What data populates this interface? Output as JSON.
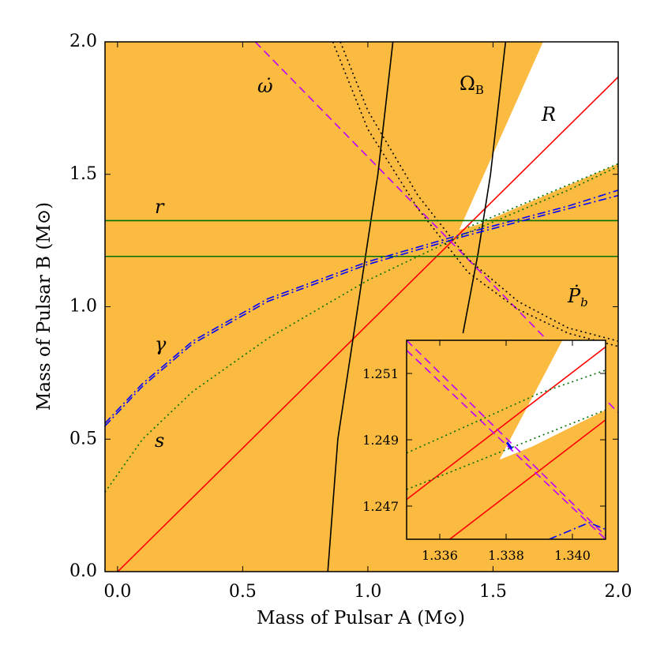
{
  "chart_data": [
    {
      "type": "line",
      "xlabel": "Mass of Pulsar A (M⊙)",
      "ylabel": "Mass of Pulsar B (M⊙)",
      "xlim": [
        -0.05,
        2.0
      ],
      "ylim": [
        0.0,
        2.0
      ],
      "xticks": [
        "0.0",
        "0.5",
        "1.0",
        "1.5",
        "2.0"
      ],
      "yticks": [
        "0.0",
        "0.5",
        "1.0",
        "1.5",
        "2.0"
      ],
      "grid": false,
      "excluded_region_color": "#FBBA40",
      "allowed_region": [
        [
          1.365,
          1.29
        ],
        [
          1.7,
          2.0
        ],
        [
          2.0,
          2.0
        ],
        [
          2.0,
          1.54
        ],
        [
          1.44,
          1.31
        ]
      ],
      "series": [
        {
          "name": "R",
          "color": "#FF0000",
          "style": "solid",
          "x": [
            -0.05,
            2.0
          ],
          "y": [
            -0.0475,
            1.8675
          ]
        },
        {
          "name": "ω̇",
          "color": "#BF00FF",
          "style": "dashed",
          "x": [
            0.55,
            2.0
          ],
          "y": [
            2.0,
            0.6
          ]
        },
        {
          "name": "Ṗb",
          "color": "#000000",
          "style": "dotted",
          "x": [
            0.86,
            1.0,
            1.2,
            1.4,
            1.6,
            1.8,
            2.0
          ],
          "y": [
            2.0,
            1.67,
            1.37,
            1.13,
            0.99,
            0.9,
            0.85
          ]
        },
        {
          "name": "Ṗb",
          "color": "#000000",
          "style": "dotted",
          "x": [
            0.89,
            1.0,
            1.2,
            1.4,
            1.6,
            1.8,
            2.0
          ],
          "y": [
            2.0,
            1.74,
            1.42,
            1.18,
            1.02,
            0.92,
            0.87
          ]
        },
        {
          "name": "ΩB",
          "color": "#000000",
          "style": "solid",
          "x": [
            0.84,
            0.88,
            0.96,
            1.04,
            1.1
          ],
          "y": [
            0.0,
            0.5,
            1.0,
            1.5,
            2.0
          ]
        },
        {
          "name": "ΩB",
          "color": "#000000",
          "style": "solid",
          "x": [
            1.38,
            1.44,
            1.49,
            1.55
          ],
          "y": [
            0.9,
            1.2,
            1.5,
            2.0
          ]
        },
        {
          "name": "r",
          "color": "#007000",
          "style": "solid",
          "x": [
            -0.05,
            2.0
          ],
          "y": [
            1.325,
            1.325
          ]
        },
        {
          "name": "r",
          "color": "#007000",
          "style": "solid",
          "x": [
            -0.05,
            2.0
          ],
          "y": [
            1.19,
            1.19
          ]
        },
        {
          "name": "γ",
          "color": "#0000FF",
          "style": "dashdot",
          "x": [
            -0.05,
            0.1,
            0.3,
            0.6,
            1.0,
            1.4,
            1.8,
            2.0
          ],
          "y": [
            0.55,
            0.7,
            0.86,
            1.02,
            1.16,
            1.27,
            1.37,
            1.42
          ]
        },
        {
          "name": "γ",
          "color": "#0000FF",
          "style": "dashdot",
          "x": [
            -0.05,
            0.1,
            0.3,
            0.6,
            1.0,
            1.4,
            1.8,
            2.0
          ],
          "y": [
            0.56,
            0.71,
            0.87,
            1.03,
            1.17,
            1.28,
            1.38,
            1.44
          ]
        },
        {
          "name": "s",
          "color": "#007000",
          "style": "dotted",
          "x": [
            -0.05,
            0.1,
            0.3,
            0.6,
            1.0,
            1.4,
            1.8,
            2.0
          ],
          "y": [
            0.3,
            0.5,
            0.68,
            0.88,
            1.1,
            1.28,
            1.44,
            1.53
          ]
        },
        {
          "name": "s",
          "color": "#007000",
          "style": "dotted",
          "x": [
            1.4,
            1.7,
            2.0
          ],
          "y": [
            1.3,
            1.42,
            1.54
          ]
        }
      ],
      "annotations": [
        "ω̇",
        "ΩB",
        "R",
        "r",
        "Ṗb",
        "γ",
        "s"
      ]
    },
    {
      "type": "line",
      "xlim": [
        1.335,
        1.341
      ],
      "ylim": [
        1.246,
        1.252
      ],
      "xticks": [
        "1.336",
        "1.338",
        "1.340"
      ],
      "yticks": [
        "1.247",
        "1.249",
        "1.251"
      ],
      "grid": false,
      "excluded_region_color": "#FBBA40",
      "allowed_region": [
        [
          1.3378,
          1.2484
        ],
        [
          1.3397,
          1.252
        ],
        [
          1.341,
          1.252
        ],
        [
          1.341,
          1.2499
        ],
        [
          1.3388,
          1.2488
        ]
      ],
      "best_fit_region": {
        "color": "#0000FF",
        "x": [
          1.338,
          1.3382
        ],
        "y": [
          1.2487,
          1.2489
        ]
      },
      "series": [
        {
          "name": "R",
          "color": "#FF0000",
          "style": "solid",
          "x": [
            1.335,
            1.341
          ],
          "y": [
            1.2472,
            1.2518
          ]
        },
        {
          "name": "R",
          "color": "#FF0000",
          "style": "solid",
          "x": [
            1.3363,
            1.341
          ],
          "y": [
            1.246,
            1.2496
          ]
        },
        {
          "name": "ω̇",
          "color": "#BF00FF",
          "style": "dashed",
          "x": [
            1.335,
            1.341
          ],
          "y": [
            1.252,
            1.2461
          ]
        },
        {
          "name": "ω̇",
          "color": "#BF00FF",
          "style": "dashed",
          "x": [
            1.335,
            1.341
          ],
          "y": [
            1.2517,
            1.246
          ]
        },
        {
          "name": "s",
          "color": "#007000",
          "style": "dotted",
          "x": [
            1.335,
            1.337,
            1.339,
            1.341
          ],
          "y": [
            1.2486,
            1.2495,
            1.2504,
            1.2511
          ]
        },
        {
          "name": "s",
          "color": "#007000",
          "style": "dotted",
          "x": [
            1.335,
            1.337,
            1.339,
            1.341
          ],
          "y": [
            1.2475,
            1.2483,
            1.2491,
            1.2499
          ]
        },
        {
          "name": "γ",
          "color": "#0000FF",
          "style": "dashdot",
          "x": [
            1.3393,
            1.3405,
            1.341
          ],
          "y": [
            1.246,
            1.2465,
            1.2463
          ]
        }
      ]
    }
  ]
}
